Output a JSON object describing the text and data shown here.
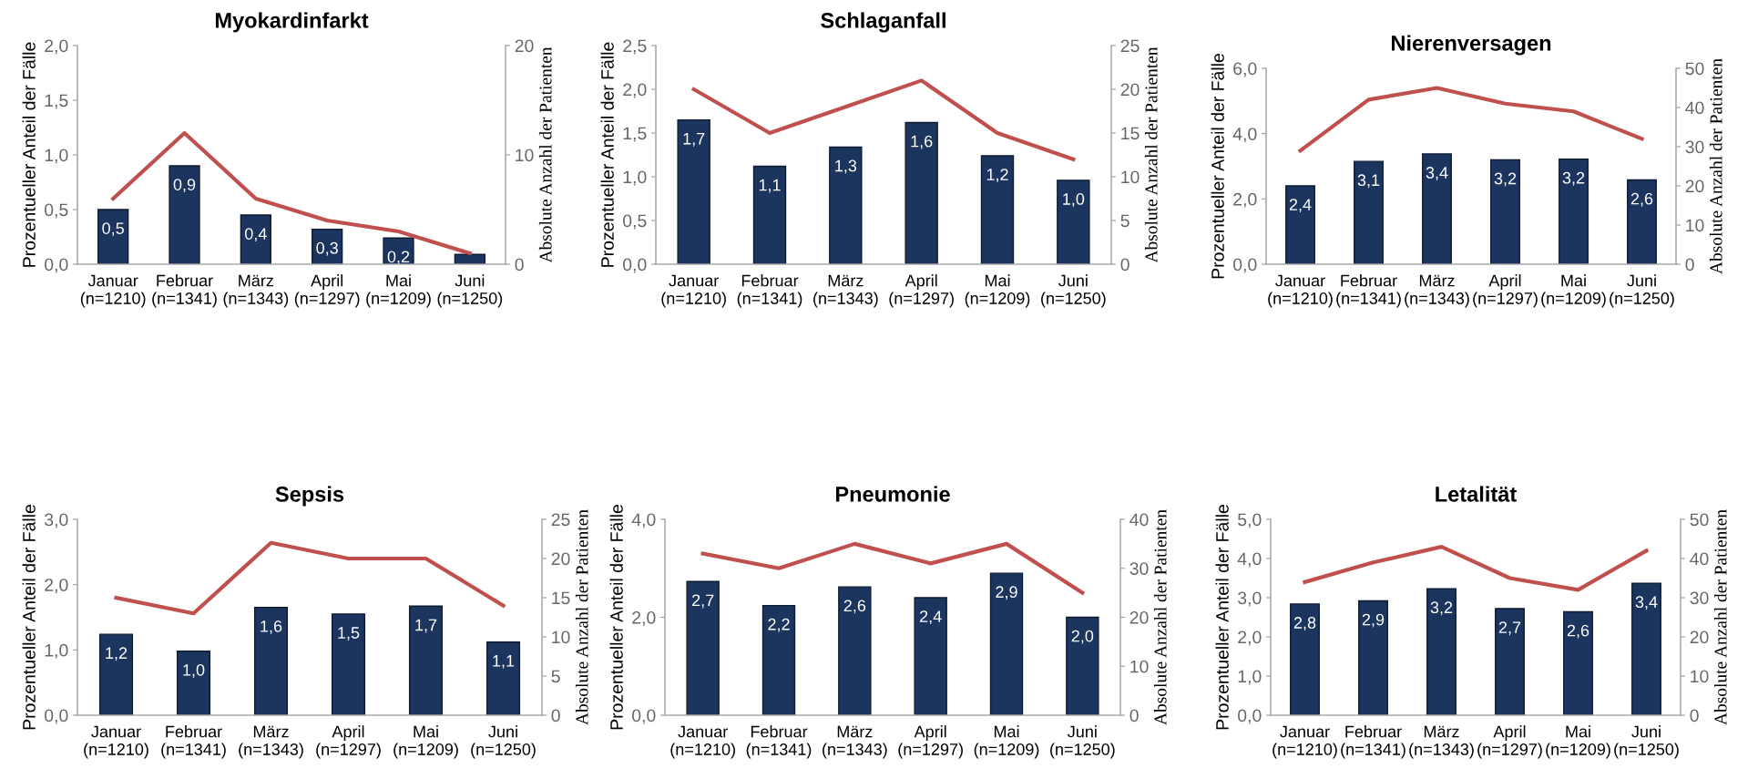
{
  "chart_data": [
    {
      "type": "bar",
      "title": "Myokardinfarkt",
      "ylabel": "Prozentueller Anteil der Fälle",
      "y2label": "Absolute Anzahl der Patienten",
      "categories": [
        "Januar\n(n=1210)",
        "Februar\n(n=1341)",
        "März\n(n=1343)",
        "April\n(n=1297)",
        "Mai\n(n=1209)",
        "Juni\n(n=1250)"
      ],
      "ylim": [
        0,
        2
      ],
      "yticks": [
        {
          "value": 0,
          "label": "0,0"
        },
        {
          "value": 0.5,
          "label": "0,5"
        },
        {
          "value": 1,
          "label": "1,0"
        },
        {
          "value": 1.5,
          "label": "1,5"
        },
        {
          "value": 2,
          "label": "2,0"
        }
      ],
      "y2lim": [
        0,
        20
      ],
      "y2ticks": [
        0,
        10,
        20
      ],
      "grid": false,
      "series": [
        {
          "color": "#1c355e",
          "values": [
            0.5,
            0.9,
            0.45,
            0.32,
            0.24,
            0.09
          ],
          "value_labels": [
            "0,5",
            "0,9",
            "0,4",
            "0,3",
            "0,2",
            null
          ]
        },
        {
          "type": "line",
          "axis": "y2",
          "color": "#c0504d",
          "values": [
            6,
            12,
            6,
            4,
            3,
            1
          ]
        }
      ]
    },
    {
      "type": "bar",
      "title": "Schlaganfall",
      "ylabel": "Prozentueller Anteil der Fälle",
      "y2label": "Absolute Anzahl der Patienten",
      "categories": [
        "Januar\n(n=1210)",
        "Februar\n(n=1341)",
        "März\n(n=1343)",
        "April\n(n=1297)",
        "Mai\n(n=1209)",
        "Juni\n(n=1250)"
      ],
      "ylim": [
        0,
        2.5
      ],
      "yticks": [
        {
          "value": 0,
          "label": "0,0"
        },
        {
          "value": 0.5,
          "label": "0,5"
        },
        {
          "value": 1,
          "label": "1,0"
        },
        {
          "value": 1.5,
          "label": "1,5"
        },
        {
          "value": 2,
          "label": "2,0"
        },
        {
          "value": 2.5,
          "label": "2,5"
        }
      ],
      "y2lim": [
        0,
        25
      ],
      "y2ticks": [
        0,
        5,
        10,
        15,
        20,
        25
      ],
      "grid": false,
      "series": [
        {
          "color": "#1c355e",
          "values": [
            1.65,
            1.12,
            1.34,
            1.62,
            1.24,
            0.96
          ],
          "value_labels": [
            "1,7",
            "1,1",
            "1,3",
            "1,6",
            "1,2",
            "1,0"
          ]
        },
        {
          "type": "line",
          "axis": "y2",
          "color": "#c0504d",
          "values": [
            20,
            15,
            18,
            21,
            15,
            12
          ]
        }
      ]
    },
    {
      "type": "bar",
      "title": "Nierenversagen",
      "ylabel": "Prozentueller Anteil der Fälle",
      "y2label": "Absolute Anzahl der Patienten",
      "categories": [
        "Januar\n(n=1210)",
        "Februar\n(n=1341)",
        "März\n(n=1343)",
        "April\n(n=1297)",
        "Mai\n(n=1209)",
        "Juni\n(n=1250)"
      ],
      "ylim": [
        0,
        6
      ],
      "yticks": [
        {
          "value": 0,
          "label": "0,0"
        },
        {
          "value": 2,
          "label": "2,0"
        },
        {
          "value": 4,
          "label": "4,0"
        },
        {
          "value": 6,
          "label": "6,0"
        }
      ],
      "y2lim": [
        0,
        50
      ],
      "y2ticks": [
        0,
        10,
        20,
        30,
        40,
        50
      ],
      "grid": false,
      "series": [
        {
          "color": "#1c355e",
          "values": [
            2.4,
            3.15,
            3.38,
            3.2,
            3.22,
            2.58
          ],
          "value_labels": [
            "2,4",
            "3,1",
            "3,4",
            "3,2",
            "3,2",
            "2,6"
          ]
        },
        {
          "type": "line",
          "axis": "y2",
          "color": "#c0504d",
          "values": [
            29,
            42,
            45,
            41,
            39,
            32
          ]
        }
      ]
    },
    {
      "type": "bar",
      "title": "Sepsis",
      "ylabel": "Prozentueller Anteil der Fälle",
      "y2label": "Absolute Anzahl der Patienten",
      "categories": [
        "Januar\n(n=1210)",
        "Februar\n(n=1341)",
        "März\n(n=1343)",
        "April\n(n=1297)",
        "Mai\n(n=1209)",
        "Juni\n(n=1250)"
      ],
      "ylim": [
        0,
        3
      ],
      "yticks": [
        {
          "value": 0,
          "label": "0,0"
        },
        {
          "value": 1,
          "label": "1,0"
        },
        {
          "value": 2,
          "label": "2,0"
        },
        {
          "value": 3,
          "label": "3,0"
        }
      ],
      "y2lim": [
        0,
        25
      ],
      "y2ticks": [
        0,
        5,
        10,
        15,
        20,
        25
      ],
      "grid": false,
      "series": [
        {
          "color": "#1c355e",
          "values": [
            1.24,
            0.98,
            1.65,
            1.55,
            1.67,
            1.12
          ],
          "value_labels": [
            "1,2",
            "1,0",
            "1,6",
            "1,5",
            "1,7",
            "1,1"
          ]
        },
        {
          "type": "line",
          "axis": "y2",
          "color": "#c0504d",
          "values": [
            15,
            13,
            22,
            20,
            20,
            14
          ]
        }
      ]
    },
    {
      "type": "bar",
      "title": "Pneumonie",
      "ylabel": "Prozentueller Anteil der Fälle",
      "y2label": "Absolute Anzahl der Patienten",
      "categories": [
        "Januar\n(n=1210)",
        "Februar\n(n=1341)",
        "März\n(n=1343)",
        "April\n(n=1297)",
        "Mai\n(n=1209)",
        "Juni\n(n=1250)"
      ],
      "ylim": [
        0,
        4
      ],
      "yticks": [
        {
          "value": 0,
          "label": "0,0"
        },
        {
          "value": 2,
          "label": "2,0"
        },
        {
          "value": 4,
          "label": "4,0"
        }
      ],
      "y2lim": [
        0,
        40
      ],
      "y2ticks": [
        0,
        10,
        20,
        30,
        40
      ],
      "grid": false,
      "series": [
        {
          "color": "#1c355e",
          "values": [
            2.73,
            2.24,
            2.62,
            2.4,
            2.9,
            2.0
          ],
          "value_labels": [
            "2,7",
            "2,2",
            "2,6",
            "2,4",
            "2,9",
            "2,0"
          ]
        },
        {
          "type": "line",
          "axis": "y2",
          "color": "#c0504d",
          "values": [
            33,
            30,
            35,
            31,
            35,
            25
          ]
        }
      ]
    },
    {
      "type": "bar",
      "title": "Letalität",
      "ylabel": "Prozentueller Anteil der Fälle",
      "y2label": "Absolute Anzahl der Patienten",
      "categories": [
        "Januar\n(n=1210)",
        "Februar\n(n=1341)",
        "März\n(n=1343)",
        "April\n(n=1297)",
        "Mai\n(n=1209)",
        "Juni\n(n=1250)"
      ],
      "ylim": [
        0,
        5
      ],
      "yticks": [
        {
          "value": 0,
          "label": "0,0"
        },
        {
          "value": 1,
          "label": "1,0"
        },
        {
          "value": 2,
          "label": "2,0"
        },
        {
          "value": 3,
          "label": "3,0"
        },
        {
          "value": 4,
          "label": "4,0"
        },
        {
          "value": 5,
          "label": "5,0"
        }
      ],
      "y2lim": [
        0,
        50
      ],
      "y2ticks": [
        0,
        10,
        20,
        30,
        40,
        50
      ],
      "grid": false,
      "series": [
        {
          "color": "#1c355e",
          "values": [
            2.84,
            2.92,
            3.23,
            2.72,
            2.64,
            3.37
          ],
          "value_labels": [
            "2,8",
            "2,9",
            "3,2",
            "2,7",
            "2,6",
            "3,4"
          ]
        },
        {
          "type": "line",
          "axis": "y2",
          "color": "#c0504d",
          "values": [
            34,
            39,
            43,
            35,
            32,
            42
          ]
        }
      ]
    }
  ]
}
